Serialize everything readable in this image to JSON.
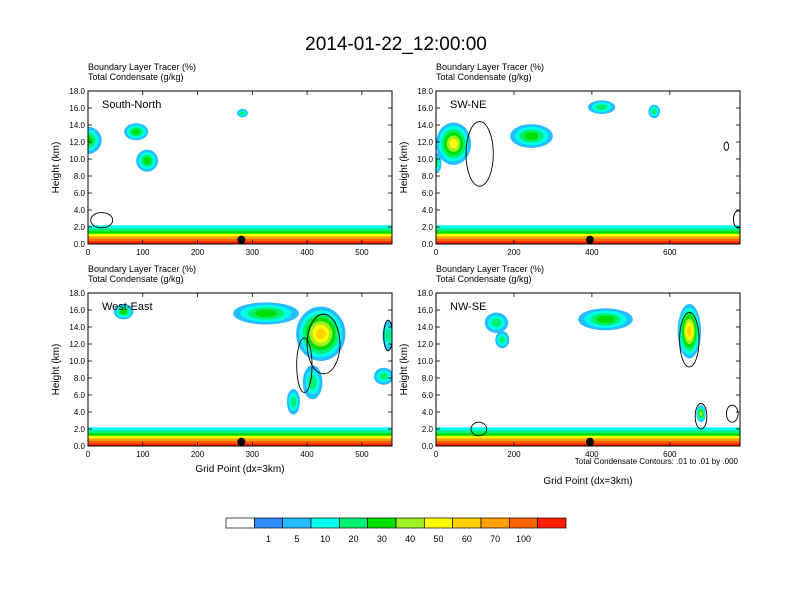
{
  "figure": {
    "title": "2014-01-22_12:00:00",
    "xlabel": "Grid Point (dx=3km)",
    "footnote": "Total Condensate Contours: .01 to .01 by .000"
  },
  "colorbar": {
    "labels": [
      "1",
      "5",
      "10",
      "20",
      "30",
      "40",
      "50",
      "60",
      "70",
      "100"
    ],
    "colors": [
      "#ffffff",
      "#2d8cff",
      "#25bdff",
      "#00ffe8",
      "#00f070",
      "#00e000",
      "#a0f028",
      "#ffff00",
      "#ffd200",
      "#ffa000",
      "#ff6400",
      "#ff1e00"
    ]
  },
  "chart_data": [
    {
      "type": "heatmap",
      "label": "South-North",
      "subtitle1": "Boundary Layer Tracer   (%)",
      "subtitle2": "Total Condensate   (g/kg)",
      "ylabel": "Height (km)",
      "xlim": [
        0,
        555
      ],
      "xticks": [
        "0",
        "100",
        "200",
        "300",
        "400",
        "500"
      ],
      "xtick_values": [
        0,
        100,
        200,
        300,
        400,
        500
      ],
      "ylim": [
        0,
        18
      ],
      "yticks": [
        "0.0",
        "2.0",
        "4.0",
        "6.0",
        "8.0",
        "10.0",
        "12.0",
        "14.0",
        "16.0",
        "18.0"
      ],
      "marker_x": 280,
      "show_xlabel": false,
      "cloud_blobs": [
        {
          "x": 0,
          "y": 12.2,
          "rx": 25,
          "ry": 1.6,
          "value": 20
        },
        {
          "x": 88,
          "y": 13.2,
          "rx": 22,
          "ry": 1.0,
          "value": 20
        },
        {
          "x": 108,
          "y": 9.8,
          "rx": 20,
          "ry": 1.3,
          "value": 20
        },
        {
          "x": 282,
          "y": 15.4,
          "rx": 10,
          "ry": 0.5,
          "value": 10
        }
      ],
      "contours": [
        {
          "x": 25,
          "y": 2.8,
          "rx": 20,
          "ry": 0.9
        }
      ]
    },
    {
      "type": "heatmap",
      "label": "SW-NE",
      "subtitle1": "Boundary Layer Tracer   (%)",
      "subtitle2": "Total Condensate   (g/kg)",
      "ylabel": "Height (km)",
      "xlim": [
        0,
        780
      ],
      "xticks": [
        "0",
        "200",
        "400",
        "600"
      ],
      "xtick_values": [
        0,
        200,
        400,
        600
      ],
      "ylim": [
        0,
        18
      ],
      "yticks": [
        "0.0",
        "2.0",
        "4.0",
        "6.0",
        "8.0",
        "10.0",
        "12.0",
        "14.0",
        "16.0",
        "18.0"
      ],
      "marker_x": 395,
      "show_xlabel": false,
      "cloud_blobs": [
        {
          "x": 45,
          "y": 11.8,
          "rx": 45,
          "ry": 2.5,
          "value": 40
        },
        {
          "x": 0,
          "y": 9.5,
          "rx": 14,
          "ry": 1.2,
          "value": 10
        },
        {
          "x": 245,
          "y": 12.7,
          "rx": 55,
          "ry": 1.4,
          "value": 20
        },
        {
          "x": 425,
          "y": 16.1,
          "rx": 35,
          "ry": 0.8,
          "value": 10
        },
        {
          "x": 560,
          "y": 15.6,
          "rx": 15,
          "ry": 0.8,
          "value": 10
        }
      ],
      "contours": [
        {
          "x": 112,
          "y": 10.6,
          "rx": 35,
          "ry": 3.8
        },
        {
          "x": 745,
          "y": 11.5,
          "rx": 6,
          "ry": 0.5
        },
        {
          "x": 775,
          "y": 2.9,
          "rx": 12,
          "ry": 1.0
        }
      ]
    },
    {
      "type": "heatmap",
      "label": "West-East",
      "subtitle1": "Boundary Layer Tracer   (%)",
      "subtitle2": "Total Condensate   (g/kg)",
      "ylabel": "Height (km)",
      "xlim": [
        0,
        555
      ],
      "xticks": [
        "0",
        "100",
        "200",
        "300",
        "400",
        "500"
      ],
      "xtick_values": [
        0,
        100,
        200,
        300,
        400,
        500
      ],
      "ylim": [
        0,
        18
      ],
      "yticks": [
        "0.0",
        "2.0",
        "4.0",
        "6.0",
        "8.0",
        "10.0",
        "12.0",
        "14.0",
        "16.0",
        "18.0"
      ],
      "marker_x": 280,
      "show_xlabel": true,
      "cloud_blobs": [
        {
          "x": 65,
          "y": 15.8,
          "rx": 18,
          "ry": 0.9,
          "value": 20
        },
        {
          "x": 325,
          "y": 15.6,
          "rx": 60,
          "ry": 1.3,
          "value": 20
        },
        {
          "x": 425,
          "y": 13.2,
          "rx": 45,
          "ry": 3.2,
          "value": 50
        },
        {
          "x": 410,
          "y": 7.5,
          "rx": 18,
          "ry": 2.0,
          "value": 10
        },
        {
          "x": 375,
          "y": 5.2,
          "rx": 12,
          "ry": 1.5,
          "value": 10
        },
        {
          "x": 540,
          "y": 8.2,
          "rx": 18,
          "ry": 1.0,
          "value": 10
        },
        {
          "x": 548,
          "y": 13.0,
          "rx": 10,
          "ry": 1.8,
          "value": 10
        }
      ],
      "contours": [
        {
          "x": 430,
          "y": 12.0,
          "rx": 30,
          "ry": 3.5
        },
        {
          "x": 395,
          "y": 9.5,
          "rx": 14,
          "ry": 3.2
        },
        {
          "x": 548,
          "y": 13.0,
          "rx": 8,
          "ry": 1.8
        }
      ]
    },
    {
      "type": "heatmap",
      "label": "NW-SE",
      "subtitle1": "Boundary Layer Tracer   (%)",
      "subtitle2": "Total Condensate   (g/kg)",
      "ylabel": "Height (km)",
      "xlim": [
        0,
        780
      ],
      "xticks": [
        "0",
        "200",
        "400",
        "600"
      ],
      "xtick_values": [
        0,
        200,
        400,
        600
      ],
      "ylim": [
        0,
        18
      ],
      "yticks": [
        "0.0",
        "2.0",
        "4.0",
        "6.0",
        "8.0",
        "10.0",
        "12.0",
        "14.0",
        "16.0",
        "18.0"
      ],
      "marker_x": 395,
      "show_xlabel": true,
      "cloud_blobs": [
        {
          "x": 155,
          "y": 14.5,
          "rx": 30,
          "ry": 1.2,
          "value": 10
        },
        {
          "x": 170,
          "y": 12.5,
          "rx": 18,
          "ry": 1.0,
          "value": 10
        },
        {
          "x": 435,
          "y": 14.9,
          "rx": 70,
          "ry": 1.3,
          "value": 20
        },
        {
          "x": 650,
          "y": 13.5,
          "rx": 30,
          "ry": 3.2,
          "value": 50
        },
        {
          "x": 680,
          "y": 3.8,
          "rx": 12,
          "ry": 1.0,
          "value": 30
        }
      ],
      "contours": [
        {
          "x": 650,
          "y": 12.5,
          "rx": 25,
          "ry": 3.2
        },
        {
          "x": 680,
          "y": 3.5,
          "rx": 15,
          "ry": 1.5
        },
        {
          "x": 760,
          "y": 3.8,
          "rx": 15,
          "ry": 1.0
        },
        {
          "x": 110,
          "y": 2.0,
          "rx": 20,
          "ry": 0.8
        }
      ]
    }
  ]
}
